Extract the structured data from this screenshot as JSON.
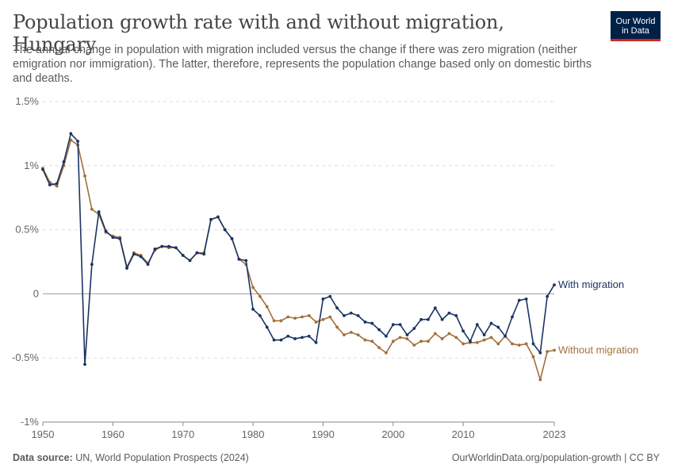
{
  "title": "Population growth rate with and without migration, Hungary",
  "subtitle": "The annual change in population with migration included versus the change if there was zero migration (neither emigration nor immigration). The latter, therefore, represents the population change based only on domestic births and deaths.",
  "logo": {
    "line1": "Our World",
    "line2": "in Data"
  },
  "footer": {
    "source_label": "Data source:",
    "source_text": "UN, World Population Prospects (2024)",
    "url": "OurWorldinData.org/population-growth | CC BY"
  },
  "colors": {
    "with_migration": "#1a3464",
    "without_migration": "#a2703a",
    "grid": "#dddddd",
    "zero_line": "#999999",
    "axis": "#888888"
  },
  "chart_data": {
    "type": "line",
    "title": "Population growth rate with and without migration, Hungary",
    "xlabel": "",
    "ylabel": "",
    "xlim": [
      1950,
      2023
    ],
    "ylim": [
      -1,
      1.5
    ],
    "y_unit": "%",
    "grid": "horizontal dashed",
    "legend": "inline labels at line ends (right)",
    "x_ticks": [
      {
        "value": 1950,
        "label": "1950"
      },
      {
        "value": 1960,
        "label": "1960"
      },
      {
        "value": 1970,
        "label": "1970"
      },
      {
        "value": 1980,
        "label": "1980"
      },
      {
        "value": 1990,
        "label": "1990"
      },
      {
        "value": 2000,
        "label": "2000"
      },
      {
        "value": 2010,
        "label": "2010"
      },
      {
        "value": 2023,
        "label": "2023"
      }
    ],
    "y_ticks": [
      {
        "value": 1.5,
        "label": "1.5%"
      },
      {
        "value": 1,
        "label": "1%"
      },
      {
        "value": 0.5,
        "label": "0.5%"
      },
      {
        "value": 0,
        "label": "0"
      },
      {
        "value": -0.5,
        "label": "-0.5%"
      },
      {
        "value": -1,
        "label": "-1%"
      }
    ],
    "x": [
      1950,
      1951,
      1952,
      1953,
      1954,
      1955,
      1956,
      1957,
      1958,
      1959,
      1960,
      1961,
      1962,
      1963,
      1964,
      1965,
      1966,
      1967,
      1968,
      1969,
      1970,
      1971,
      1972,
      1973,
      1974,
      1975,
      1976,
      1977,
      1978,
      1979,
      1980,
      1981,
      1982,
      1983,
      1984,
      1985,
      1986,
      1987,
      1988,
      1989,
      1990,
      1991,
      1992,
      1993,
      1994,
      1995,
      1996,
      1997,
      1998,
      1999,
      2000,
      2001,
      2002,
      2003,
      2004,
      2005,
      2006,
      2007,
      2008,
      2009,
      2010,
      2011,
      2012,
      2013,
      2014,
      2015,
      2016,
      2017,
      2018,
      2019,
      2020,
      2021,
      2022,
      2023
    ],
    "series": [
      {
        "name": "With migration",
        "color": "#1a3464",
        "values": [
          0.97,
          0.85,
          0.86,
          1.03,
          1.25,
          1.19,
          -0.55,
          0.23,
          0.64,
          0.49,
          0.44,
          0.43,
          0.2,
          0.31,
          0.29,
          0.23,
          0.35,
          0.37,
          0.37,
          0.36,
          0.3,
          0.26,
          0.32,
          0.31,
          0.58,
          0.6,
          0.5,
          0.43,
          0.27,
          0.26,
          -0.12,
          -0.17,
          -0.26,
          -0.36,
          -0.36,
          -0.33,
          -0.35,
          -0.34,
          -0.33,
          -0.38,
          -0.04,
          -0.02,
          -0.11,
          -0.17,
          -0.15,
          -0.17,
          -0.22,
          -0.23,
          -0.28,
          -0.33,
          -0.24,
          -0.24,
          -0.32,
          -0.27,
          -0.2,
          -0.2,
          -0.11,
          -0.2,
          -0.15,
          -0.17,
          -0.29,
          -0.37,
          -0.24,
          -0.32,
          -0.23,
          -0.26,
          -0.33,
          -0.18,
          -0.05,
          -0.04,
          -0.39,
          -0.46,
          -0.02,
          0.07
        ]
      },
      {
        "name": "Without migration",
        "color": "#a2703a",
        "values": [
          0.98,
          0.87,
          0.84,
          1.0,
          1.2,
          1.16,
          0.92,
          0.66,
          0.62,
          0.48,
          0.45,
          0.44,
          0.21,
          0.32,
          0.3,
          0.24,
          0.34,
          0.37,
          0.36,
          0.36,
          0.3,
          0.26,
          0.32,
          0.32,
          0.58,
          0.6,
          0.5,
          0.43,
          0.27,
          0.23,
          0.05,
          -0.02,
          -0.1,
          -0.21,
          -0.21,
          -0.18,
          -0.19,
          -0.18,
          -0.17,
          -0.22,
          -0.2,
          -0.18,
          -0.26,
          -0.32,
          -0.3,
          -0.32,
          -0.36,
          -0.37,
          -0.42,
          -0.46,
          -0.37,
          -0.34,
          -0.35,
          -0.4,
          -0.37,
          -0.37,
          -0.31,
          -0.35,
          -0.31,
          -0.34,
          -0.39,
          -0.38,
          -0.38,
          -0.36,
          -0.34,
          -0.39,
          -0.33,
          -0.39,
          -0.4,
          -0.39,
          -0.49,
          -0.67,
          -0.45,
          -0.44
        ]
      }
    ]
  }
}
